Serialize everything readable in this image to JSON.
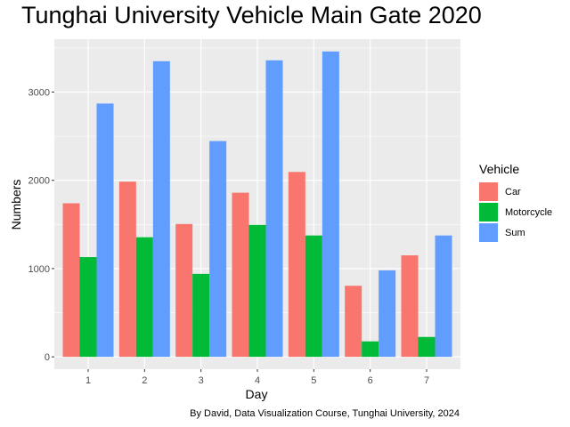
{
  "chart_data": {
    "type": "bar",
    "title": "Tunghai University Vehicle Main Gate 2020",
    "xlabel": "Day",
    "ylabel": "Numbers",
    "categories": [
      "1",
      "2",
      "3",
      "4",
      "5",
      "6",
      "7"
    ],
    "series": [
      {
        "name": "Car",
        "color": "#F8766D",
        "values": [
          1740,
          1985,
          1505,
          1860,
          2095,
          805,
          1150
        ]
      },
      {
        "name": "Motorcycle",
        "color": "#00BA38",
        "values": [
          1130,
          1355,
          940,
          1495,
          1375,
          175,
          225
        ]
      },
      {
        "name": "Sum",
        "color": "#619CFF",
        "values": [
          2870,
          3350,
          2445,
          3360,
          3460,
          980,
          1375
        ]
      }
    ],
    "ylim": [
      -140,
      3600
    ],
    "yticks": [
      0,
      1000,
      2000,
      3000
    ],
    "legend_title": "Vehicle",
    "legend_position": "right",
    "grid": true,
    "caption": "By David, Data Visualization Course, Tunghai University, 2024"
  }
}
